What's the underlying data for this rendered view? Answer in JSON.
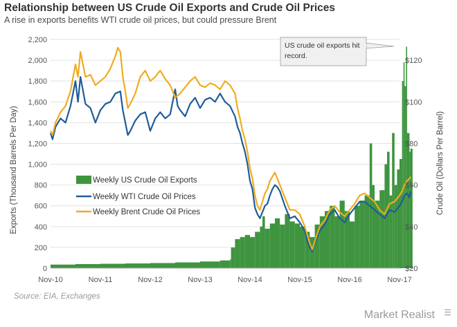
{
  "header": {
    "title": "Relationship between US Crude Oil Exports and Crude Oil Prices",
    "subtitle": "A rise in exports benefits WTI crude oil prices, but could pressure Brent"
  },
  "footer": {
    "source": "Source: EIA, Exchanges",
    "brand": "Market Realist"
  },
  "colors": {
    "exports": "#3f9440",
    "wti": "#1f5c99",
    "brent": "#f0ac1e",
    "grid": "#e2e2e2"
  },
  "chart_data": {
    "type": "bar+line",
    "x_tick_labels": [
      "Nov-10",
      "Nov-11",
      "Nov-12",
      "Nov-13",
      "Nov-14",
      "Nov-15",
      "Nov-16",
      "Nov-17"
    ],
    "y_left": {
      "label": "Exports (Thousand  Barrels Per Day)",
      "range": [
        0,
        2200
      ],
      "tick_labels": [
        "0",
        "200",
        "400",
        "600",
        "800",
        "1,000",
        "1,200",
        "1,400",
        "1,600",
        "1,800",
        "2,000",
        "2,200"
      ]
    },
    "y_right": {
      "label": "Crude Oil (Dollars Per Barrel)",
      "range": [
        20,
        130
      ],
      "tick_labels": [
        "$20",
        "$40",
        "$60",
        "$80",
        "$100",
        "$120"
      ],
      "tick_values": [
        20,
        40,
        60,
        80,
        100,
        120
      ]
    },
    "annotation": {
      "line1": "US crude oil exports hit",
      "line2": "record."
    },
    "series": [
      {
        "name": "Weekly US Crude Oil Exports",
        "kind": "bar",
        "axis": "left",
        "points": [
          [
            0.0,
            35
          ],
          [
            0.5,
            40
          ],
          [
            1.0,
            43
          ],
          [
            1.5,
            46
          ],
          [
            2.0,
            50
          ],
          [
            2.5,
            56
          ],
          [
            3.0,
            65
          ],
          [
            3.4,
            75
          ],
          [
            3.6,
            85
          ],
          [
            3.62,
            200
          ],
          [
            3.7,
            280
          ],
          [
            3.8,
            300
          ],
          [
            3.9,
            320
          ],
          [
            4.0,
            300
          ],
          [
            4.1,
            350
          ],
          [
            4.2,
            400
          ],
          [
            4.25,
            500
          ],
          [
            4.3,
            380
          ],
          [
            4.4,
            430
          ],
          [
            4.5,
            480
          ],
          [
            4.6,
            420
          ],
          [
            4.7,
            520
          ],
          [
            4.8,
            450
          ],
          [
            4.9,
            430
          ],
          [
            5.0,
            400
          ],
          [
            5.1,
            350
          ],
          [
            5.2,
            300
          ],
          [
            5.3,
            420
          ],
          [
            5.4,
            500
          ],
          [
            5.5,
            550
          ],
          [
            5.6,
            600
          ],
          [
            5.7,
            500
          ],
          [
            5.8,
            650
          ],
          [
            5.9,
            550
          ],
          [
            6.0,
            450
          ],
          [
            6.1,
            600
          ],
          [
            6.2,
            650
          ],
          [
            6.3,
            700
          ],
          [
            6.4,
            1200
          ],
          [
            6.45,
            800
          ],
          [
            6.5,
            650
          ],
          [
            6.6,
            750
          ],
          [
            6.7,
            1000
          ],
          [
            6.75,
            1120
          ],
          [
            6.8,
            700
          ],
          [
            6.85,
            1300
          ],
          [
            6.9,
            800
          ],
          [
            6.95,
            950
          ],
          [
            7.0,
            1050
          ],
          [
            7.05,
            1800
          ],
          [
            7.08,
            1980
          ],
          [
            7.1,
            1750
          ],
          [
            7.13,
            2130
          ],
          [
            7.15,
            1300
          ],
          [
            7.2,
            1120
          ],
          [
            7.22,
            1150
          ]
        ]
      },
      {
        "name": "Weekly WTI Crude Oil Prices",
        "kind": "line",
        "axis": "right",
        "points": [
          [
            0.0,
            85
          ],
          [
            0.04,
            82
          ],
          [
            0.1,
            88
          ],
          [
            0.2,
            92
          ],
          [
            0.3,
            90
          ],
          [
            0.4,
            98
          ],
          [
            0.5,
            110
          ],
          [
            0.55,
            100
          ],
          [
            0.6,
            112
          ],
          [
            0.7,
            99
          ],
          [
            0.8,
            97
          ],
          [
            0.9,
            90
          ],
          [
            1.0,
            96
          ],
          [
            1.1,
            99
          ],
          [
            1.2,
            100
          ],
          [
            1.3,
            104
          ],
          [
            1.4,
            105
          ],
          [
            1.45,
            96
          ],
          [
            1.5,
            90
          ],
          [
            1.55,
            84
          ],
          [
            1.6,
            86
          ],
          [
            1.7,
            91
          ],
          [
            1.8,
            94
          ],
          [
            1.9,
            95
          ],
          [
            2.0,
            86
          ],
          [
            2.1,
            92
          ],
          [
            2.2,
            95
          ],
          [
            2.3,
            92
          ],
          [
            2.4,
            94
          ],
          [
            2.5,
            106
          ],
          [
            2.55,
            98
          ],
          [
            2.6,
            96
          ],
          [
            2.7,
            93
          ],
          [
            2.8,
            99
          ],
          [
            2.9,
            102
          ],
          [
            3.0,
            97
          ],
          [
            3.1,
            101
          ],
          [
            3.2,
            102
          ],
          [
            3.3,
            100
          ],
          [
            3.4,
            104
          ],
          [
            3.5,
            100
          ],
          [
            3.6,
            98
          ],
          [
            3.7,
            93
          ],
          [
            3.75,
            88
          ],
          [
            3.8,
            85
          ],
          [
            3.85,
            80
          ],
          [
            3.9,
            76
          ],
          [
            3.95,
            70
          ],
          [
            4.0,
            62
          ],
          [
            4.05,
            58
          ],
          [
            4.1,
            49
          ],
          [
            4.15,
            46
          ],
          [
            4.2,
            44
          ],
          [
            4.25,
            47
          ],
          [
            4.3,
            50
          ],
          [
            4.35,
            51
          ],
          [
            4.4,
            55
          ],
          [
            4.45,
            58
          ],
          [
            4.5,
            60
          ],
          [
            4.55,
            59
          ],
          [
            4.6,
            57
          ],
          [
            4.7,
            50
          ],
          [
            4.8,
            44
          ],
          [
            4.9,
            45
          ],
          [
            5.0,
            42
          ],
          [
            5.1,
            38
          ],
          [
            5.15,
            33
          ],
          [
            5.2,
            30
          ],
          [
            5.25,
            28
          ],
          [
            5.3,
            32
          ],
          [
            5.4,
            38
          ],
          [
            5.5,
            41
          ],
          [
            5.6,
            46
          ],
          [
            5.7,
            48
          ],
          [
            5.8,
            44
          ],
          [
            5.9,
            42
          ],
          [
            6.0,
            46
          ],
          [
            6.1,
            49
          ],
          [
            6.2,
            52
          ],
          [
            6.3,
            52
          ],
          [
            6.4,
            50
          ],
          [
            6.5,
            48
          ],
          [
            6.6,
            46
          ],
          [
            6.7,
            44
          ],
          [
            6.8,
            48
          ],
          [
            6.9,
            47
          ],
          [
            7.0,
            50
          ],
          [
            7.05,
            52
          ],
          [
            7.1,
            55
          ],
          [
            7.15,
            56
          ],
          [
            7.2,
            54
          ],
          [
            7.22,
            57
          ]
        ]
      },
      {
        "name": "Weekly Brent Crude Oil Prices",
        "kind": "line",
        "axis": "right",
        "points": [
          [
            0.0,
            86
          ],
          [
            0.04,
            84
          ],
          [
            0.1,
            90
          ],
          [
            0.2,
            95
          ],
          [
            0.3,
            98
          ],
          [
            0.4,
            105
          ],
          [
            0.5,
            118
          ],
          [
            0.55,
            112
          ],
          [
            0.6,
            124
          ],
          [
            0.7,
            112
          ],
          [
            0.8,
            113
          ],
          [
            0.9,
            108
          ],
          [
            1.0,
            110
          ],
          [
            1.1,
            112
          ],
          [
            1.2,
            116
          ],
          [
            1.3,
            122
          ],
          [
            1.35,
            126
          ],
          [
            1.4,
            124
          ],
          [
            1.45,
            112
          ],
          [
            1.5,
            105
          ],
          [
            1.55,
            97
          ],
          [
            1.6,
            99
          ],
          [
            1.7,
            104
          ],
          [
            1.8,
            112
          ],
          [
            1.9,
            115
          ],
          [
            2.0,
            110
          ],
          [
            2.1,
            112
          ],
          [
            2.2,
            115
          ],
          [
            2.3,
            111
          ],
          [
            2.4,
            108
          ],
          [
            2.5,
            102
          ],
          [
            2.6,
            104
          ],
          [
            2.7,
            107
          ],
          [
            2.8,
            110
          ],
          [
            2.9,
            112
          ],
          [
            3.0,
            108
          ],
          [
            3.1,
            107
          ],
          [
            3.2,
            109
          ],
          [
            3.3,
            108
          ],
          [
            3.4,
            106
          ],
          [
            3.5,
            110
          ],
          [
            3.6,
            108
          ],
          [
            3.7,
            104
          ],
          [
            3.75,
            97
          ],
          [
            3.8,
            92
          ],
          [
            3.85,
            86
          ],
          [
            3.9,
            82
          ],
          [
            3.95,
            76
          ],
          [
            4.0,
            68
          ],
          [
            4.05,
            63
          ],
          [
            4.1,
            55
          ],
          [
            4.15,
            50
          ],
          [
            4.2,
            48
          ],
          [
            4.25,
            52
          ],
          [
            4.3,
            56
          ],
          [
            4.35,
            58
          ],
          [
            4.4,
            62
          ],
          [
            4.45,
            64
          ],
          [
            4.5,
            66
          ],
          [
            4.55,
            63
          ],
          [
            4.6,
            60
          ],
          [
            4.7,
            54
          ],
          [
            4.8,
            48
          ],
          [
            4.9,
            48
          ],
          [
            5.0,
            46
          ],
          [
            5.1,
            40
          ],
          [
            5.15,
            36
          ],
          [
            5.2,
            32
          ],
          [
            5.25,
            29
          ],
          [
            5.3,
            33
          ],
          [
            5.4,
            40
          ],
          [
            5.5,
            43
          ],
          [
            5.6,
            48
          ],
          [
            5.7,
            50
          ],
          [
            5.8,
            47
          ],
          [
            5.9,
            45
          ],
          [
            6.0,
            48
          ],
          [
            6.1,
            51
          ],
          [
            6.2,
            55
          ],
          [
            6.3,
            56
          ],
          [
            6.4,
            54
          ],
          [
            6.5,
            52
          ],
          [
            6.6,
            48
          ],
          [
            6.7,
            46
          ],
          [
            6.8,
            51
          ],
          [
            6.9,
            52
          ],
          [
            7.0,
            55
          ],
          [
            7.05,
            57
          ],
          [
            7.1,
            60
          ],
          [
            7.15,
            62
          ],
          [
            7.2,
            63
          ],
          [
            7.22,
            64
          ]
        ]
      }
    ]
  }
}
